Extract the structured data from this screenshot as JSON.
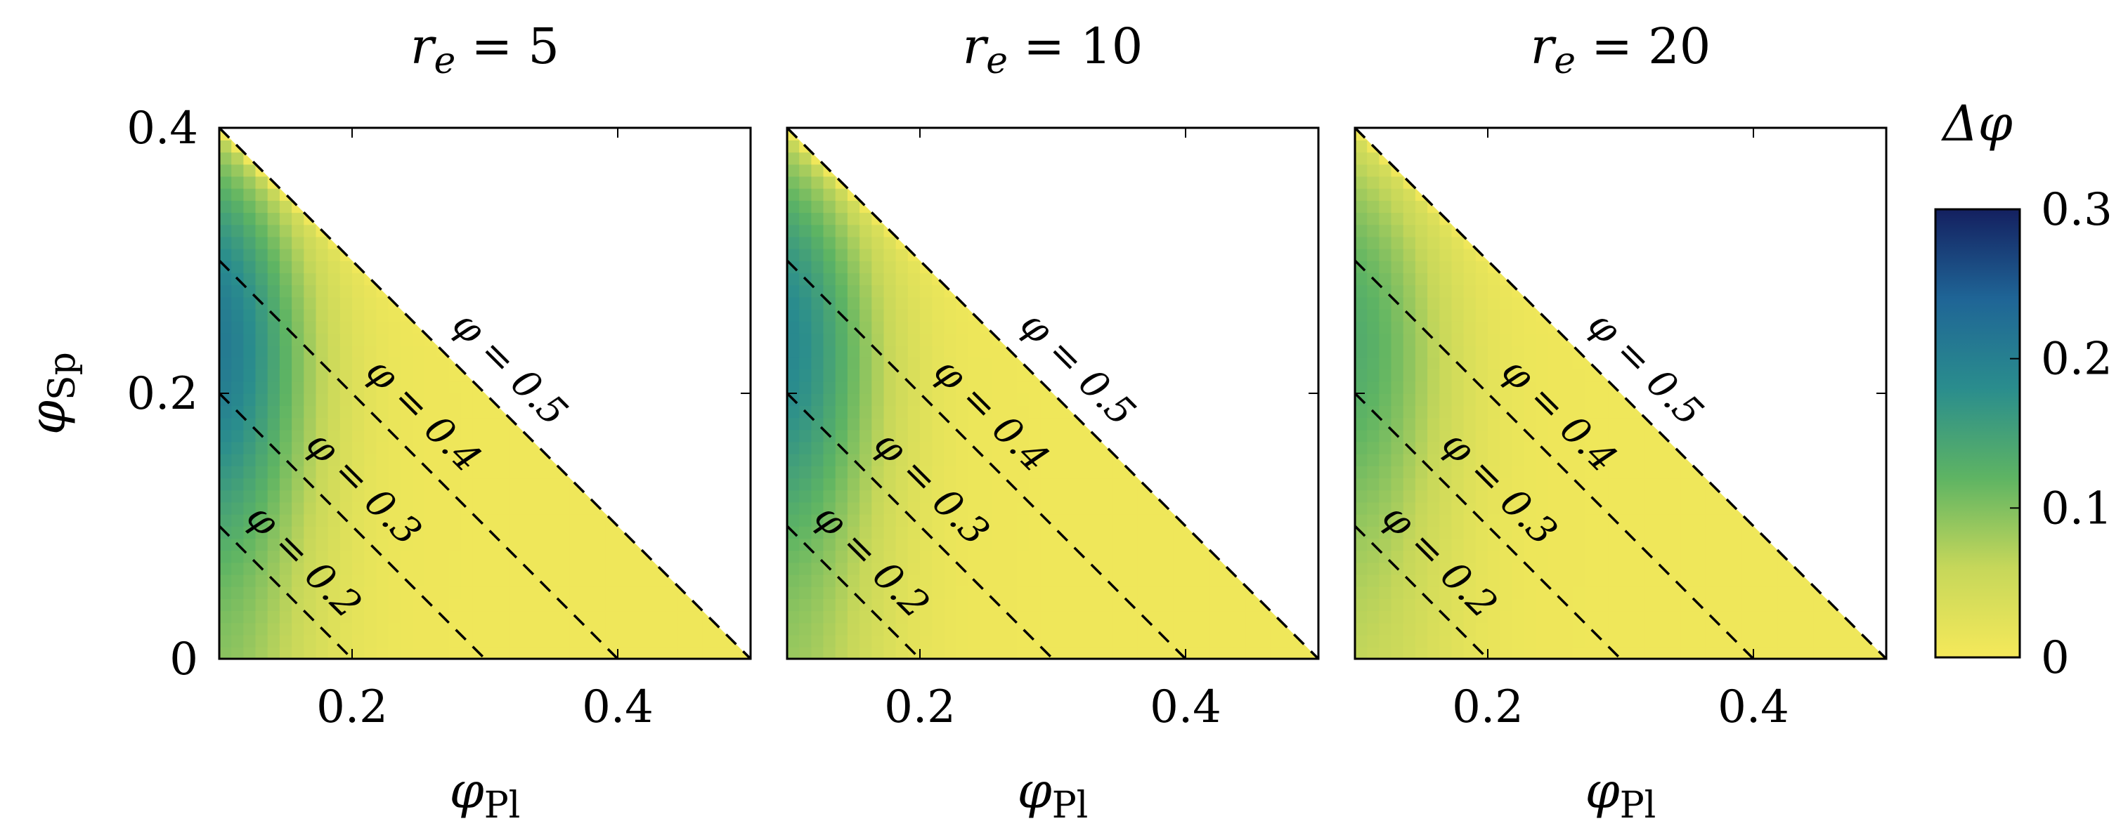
{
  "chart_data": {
    "type": "heatmap",
    "colorbar": {
      "label": "Δφ",
      "range": [
        0,
        0.3
      ],
      "ticks": [
        "0",
        "0.1",
        "0.2",
        "0.3"
      ],
      "colors": [
        "#f5e95a",
        "#c6d75a",
        "#5eb463",
        "#2a8d8d",
        "#1f6596",
        "#142060"
      ]
    },
    "panels": [
      {
        "title": "r_e = 5",
        "title_parts": {
          "var": "r",
          "sub": "e",
          "rest": " = 5"
        },
        "xlabel": "φ_Pl",
        "ylabel": "φ_Sp",
        "xlim": [
          0.1,
          0.5
        ],
        "ylim": [
          0,
          0.4
        ],
        "xticks": [
          "0.2",
          "0.4"
        ],
        "yticks": [
          "0",
          "0.2",
          "0.4"
        ],
        "contours": [
          {
            "label": "φ = 0.2",
            "phi": 0.2
          },
          {
            "label": "φ = 0.3",
            "phi": 0.3
          },
          {
            "label": "φ = 0.4",
            "phi": 0.4
          },
          {
            "label": "φ = 0.5",
            "phi": 0.5
          }
        ],
        "peak_delta_phi": 0.29,
        "peak_at": {
          "phi_pl": 0.11,
          "phi_sp": 0.29
        }
      },
      {
        "title": "r_e = 10",
        "title_parts": {
          "var": "r",
          "sub": "e",
          "rest": " = 10"
        },
        "xlabel": "φ_Pl",
        "ylabel": "",
        "xlim": [
          0.1,
          0.5
        ],
        "ylim": [
          0,
          0.4
        ],
        "xticks": [
          "0.2",
          "0.4"
        ],
        "yticks": [],
        "contours": [
          {
            "label": "φ = 0.2",
            "phi": 0.2
          },
          {
            "label": "φ = 0.3",
            "phi": 0.3
          },
          {
            "label": "φ = 0.4",
            "phi": 0.4
          },
          {
            "label": "φ = 0.5",
            "phi": 0.5
          }
        ],
        "peak_delta_phi": 0.26,
        "peak_at": {
          "phi_pl": 0.11,
          "phi_sp": 0.29
        }
      },
      {
        "title": "r_e = 20",
        "title_parts": {
          "var": "r",
          "sub": "e",
          "rest": " = 20"
        },
        "xlabel": "φ_Pl",
        "ylabel": "",
        "xlim": [
          0.1,
          0.5
        ],
        "ylim": [
          0,
          0.4
        ],
        "xticks": [
          "0.2",
          "0.4"
        ],
        "yticks": [],
        "contours": [
          {
            "label": "φ = 0.2",
            "phi": 0.2
          },
          {
            "label": "φ = 0.3",
            "phi": 0.3
          },
          {
            "label": "φ = 0.4",
            "phi": 0.4
          },
          {
            "label": "φ = 0.5",
            "phi": 0.5
          }
        ],
        "peak_delta_phi": 0.18,
        "peak_at": {
          "phi_pl": 0.11,
          "phi_sp": 0.26
        }
      }
    ]
  }
}
